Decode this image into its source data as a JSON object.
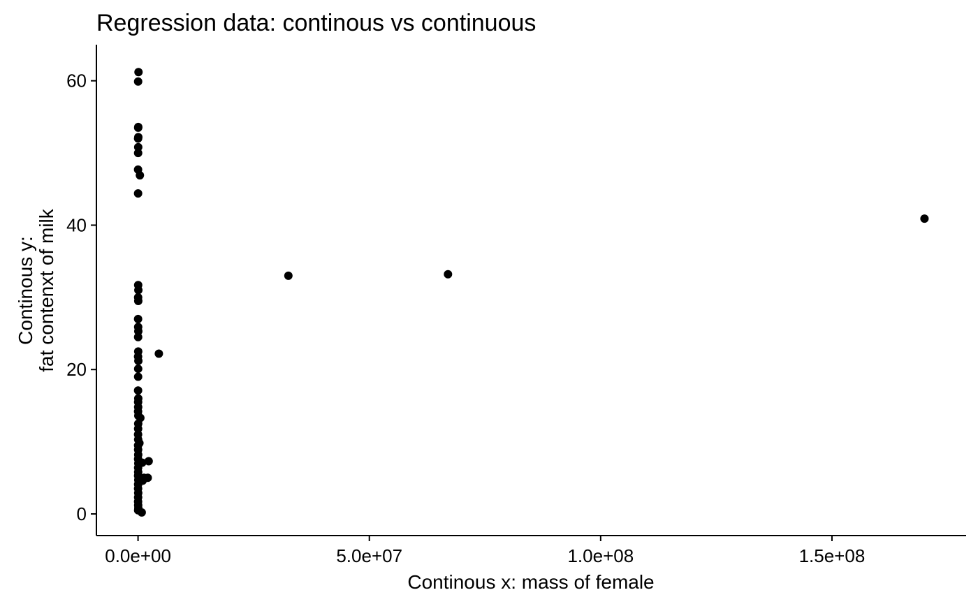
{
  "chart_data": {
    "type": "scatter",
    "title": "Regression data: continous vs continuous",
    "xlabel": "Continous x: mass of female",
    "ylabel_lines": [
      "Continous y:",
      "fat contenxt of milk"
    ],
    "xlim": [
      -9000000,
      179000000
    ],
    "ylim": [
      -3,
      65
    ],
    "x_ticks": [
      {
        "value": 0,
        "label": "0.0e+00"
      },
      {
        "value": 50000000,
        "label": "5.0e+07"
      },
      {
        "value": 100000000,
        "label": "1.0e+08"
      },
      {
        "value": 150000000,
        "label": "1.5e+08"
      }
    ],
    "y_ticks": [
      {
        "value": 0,
        "label": "0"
      },
      {
        "value": 20,
        "label": "20"
      },
      {
        "value": 40,
        "label": "40"
      },
      {
        "value": 60,
        "label": "60"
      }
    ],
    "grid": false,
    "legend": "none",
    "point_color": "#000000",
    "points": [
      [
        100000,
        61.2
      ],
      [
        20000,
        59.9
      ],
      [
        50000,
        53.6
      ],
      [
        30000,
        53.5
      ],
      [
        60000,
        52.2
      ],
      [
        10000,
        52.0
      ],
      [
        40000,
        50.8
      ],
      [
        20000,
        50.0
      ],
      [
        5000,
        47.7
      ],
      [
        400000,
        46.9
      ],
      [
        10000,
        44.4
      ],
      [
        30000,
        31.7
      ],
      [
        70000,
        31.0
      ],
      [
        20000,
        30.0
      ],
      [
        50000,
        29.5
      ],
      [
        10000,
        27.0
      ],
      [
        30000,
        25.9
      ],
      [
        60000,
        25.3
      ],
      [
        20000,
        24.5
      ],
      [
        40000,
        22.5
      ],
      [
        10000,
        21.8
      ],
      [
        70000,
        21.2
      ],
      [
        30000,
        20.1
      ],
      [
        20000,
        19.0
      ],
      [
        10000,
        17.1
      ],
      [
        50000,
        16.0
      ],
      [
        20000,
        15.5
      ],
      [
        30000,
        14.8
      ],
      [
        10000,
        14.2
      ],
      [
        60000,
        13.6
      ],
      [
        40000,
        12.5
      ],
      [
        20000,
        11.8
      ],
      [
        10000,
        11.0
      ],
      [
        30000,
        10.3
      ],
      [
        500000,
        13.3
      ],
      [
        300000,
        9.8
      ],
      [
        10000,
        9.5
      ],
      [
        20000,
        8.9
      ],
      [
        40000,
        8.2
      ],
      [
        10000,
        7.6
      ],
      [
        60000,
        7.0
      ],
      [
        20000,
        6.4
      ],
      [
        30000,
        5.8
      ],
      [
        10000,
        5.3
      ],
      [
        50000,
        4.7
      ],
      [
        20000,
        4.1
      ],
      [
        10000,
        3.5
      ],
      [
        40000,
        2.9
      ],
      [
        20000,
        2.3
      ],
      [
        10000,
        1.7
      ],
      [
        30000,
        1.2
      ],
      [
        60000,
        0.8
      ],
      [
        20000,
        0.5
      ],
      [
        800000,
        0.2
      ],
      [
        1000000,
        4.6
      ],
      [
        1300000,
        5.0
      ],
      [
        900000,
        7.1
      ],
      [
        2300000,
        7.3
      ],
      [
        2100000,
        5.0
      ],
      [
        4500000,
        22.2
      ],
      [
        32500000,
        33.0
      ],
      [
        67000000,
        33.2
      ],
      [
        170000000,
        40.9
      ]
    ]
  }
}
